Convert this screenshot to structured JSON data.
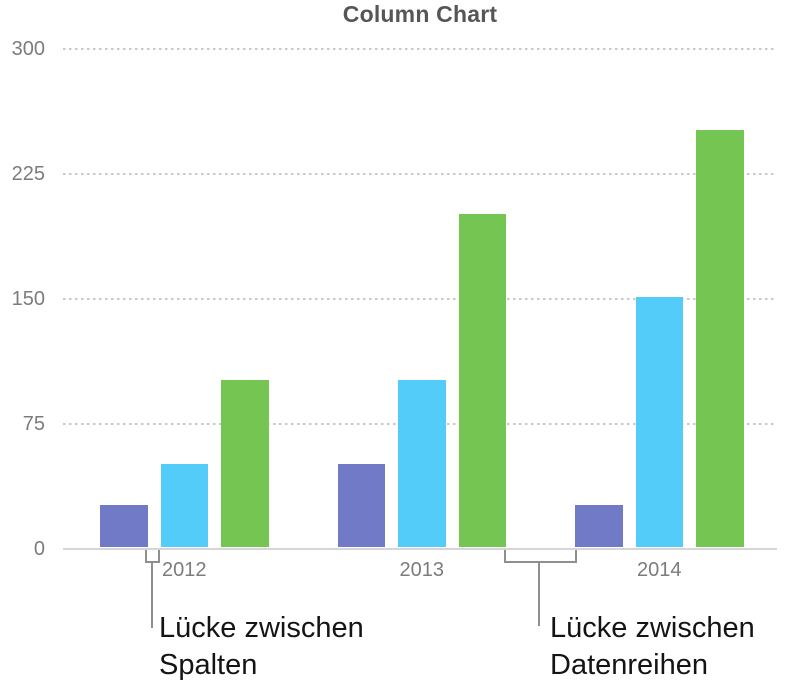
{
  "chart_data": {
    "type": "bar",
    "title": "Column Chart",
    "categories": [
      "2012",
      "2013",
      "2014"
    ],
    "series": [
      {
        "color": "#707AC7",
        "values": [
          25,
          50,
          25
        ]
      },
      {
        "color": "#54CCFA",
        "values": [
          50,
          100,
          150
        ]
      },
      {
        "color": "#75C553",
        "values": [
          100,
          200,
          250
        ]
      }
    ],
    "yticks": [
      0,
      75,
      150,
      225,
      300
    ],
    "ylim": [
      0,
      300
    ],
    "grid": "dotted-horizontal",
    "legend_position": "none",
    "axis_color": "#d6d6d6",
    "label_color": "#7c7c7c",
    "callout_color": "#8f8f8f"
  },
  "annotations": [
    {
      "text": "Lücke zwischen Spalten"
    },
    {
      "text": "Lücke zwischen Datenreihen"
    }
  ]
}
